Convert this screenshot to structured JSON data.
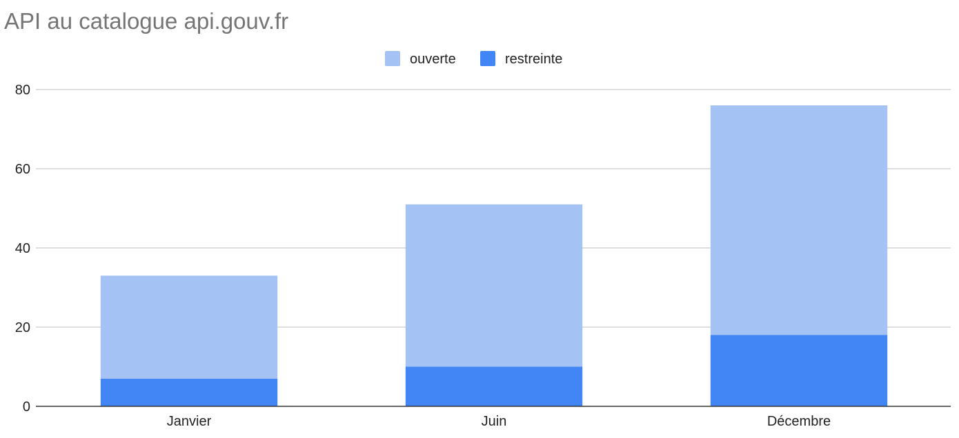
{
  "chart_data": {
    "type": "bar",
    "stacked": true,
    "title": "API au catalogue api.gouv.fr",
    "xlabel": "",
    "ylabel": "",
    "categories": [
      "Janvier",
      "Juin",
      "Décembre"
    ],
    "series": [
      {
        "name": "restreinte",
        "values": [
          7,
          10,
          18
        ],
        "color": "#4285f4"
      },
      {
        "name": "ouverte",
        "values": [
          26,
          41,
          58
        ],
        "color": "#a4c2f4"
      }
    ],
    "ylim": [
      0,
      80
    ],
    "yticks": [
      0,
      20,
      40,
      60,
      80
    ],
    "grid": true,
    "legend_position": "top-center"
  }
}
